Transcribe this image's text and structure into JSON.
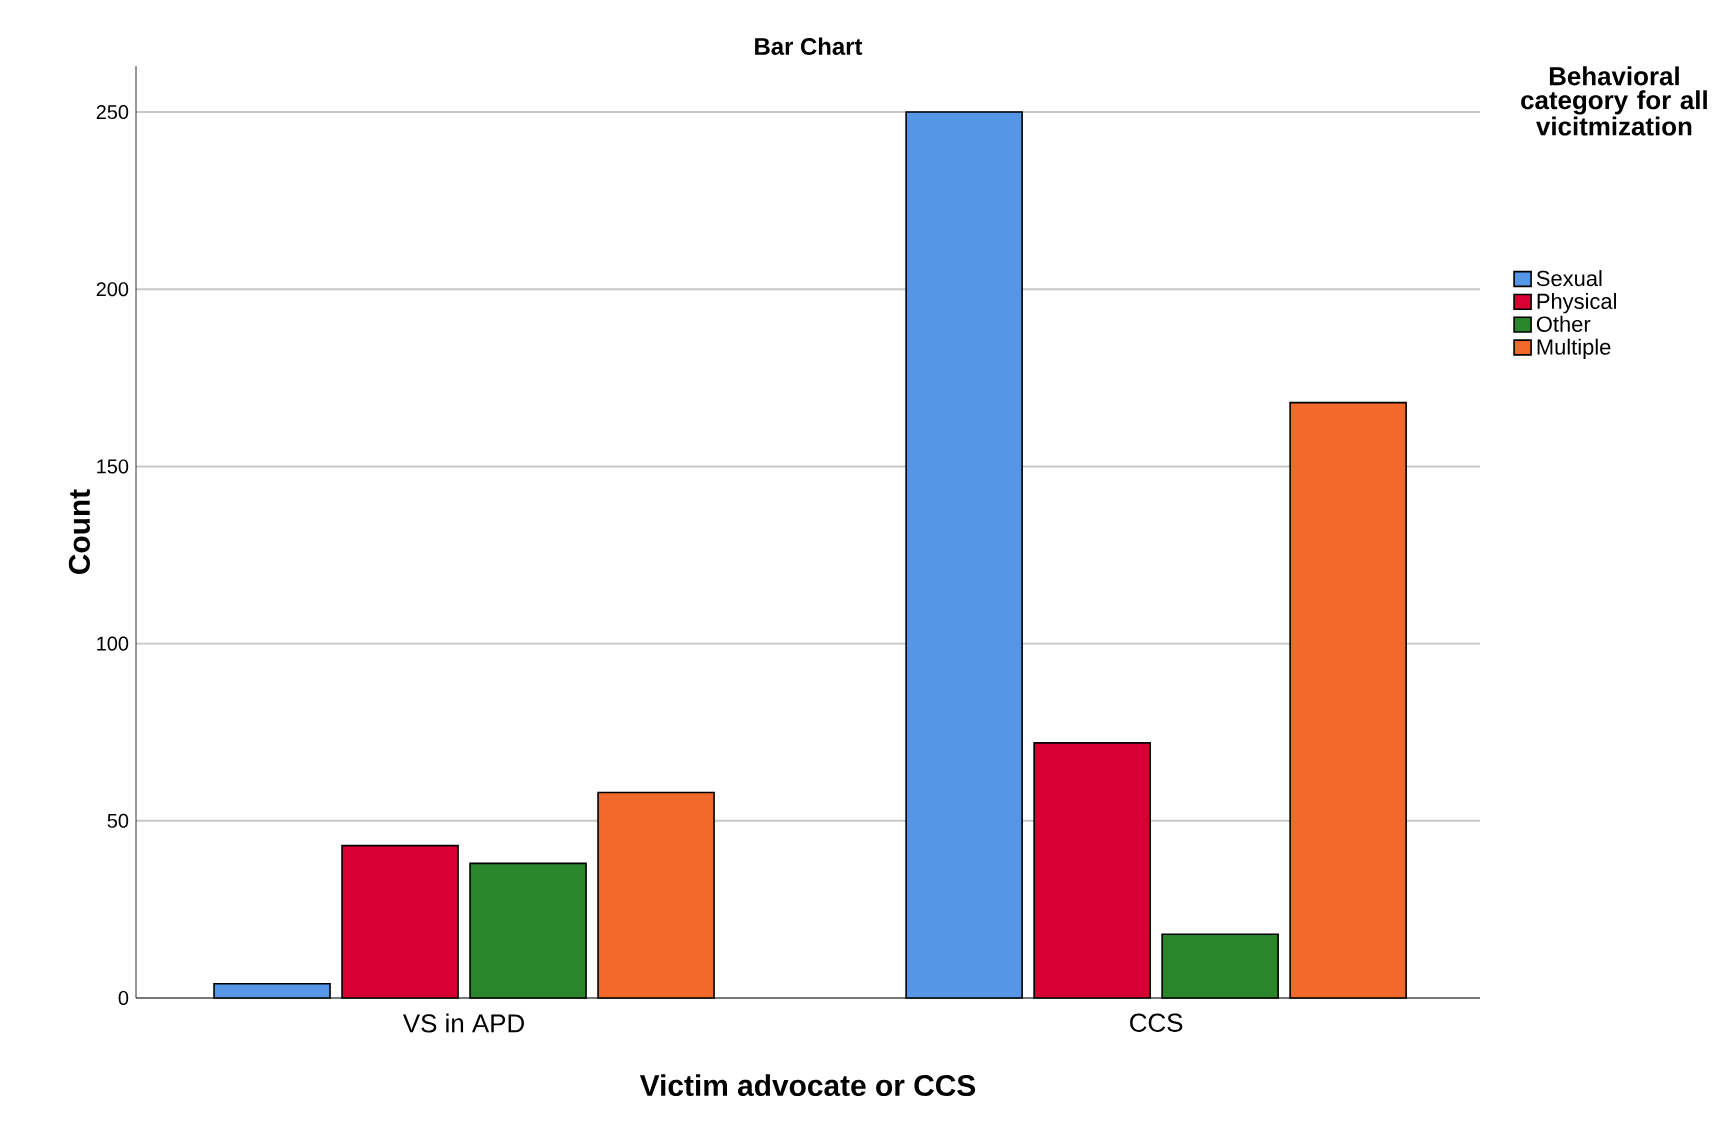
{
  "chart_data": {
    "type": "bar",
    "title": "Bar Chart",
    "xlabel": "Victim advocate or CCS",
    "ylabel": "Count",
    "legend_title": "Behavioral category for all vicitmization",
    "categories": [
      "VS in APD",
      "CCS"
    ],
    "series": [
      {
        "name": "Sexual",
        "color": "#5596e6",
        "values": [
          4,
          250
        ]
      },
      {
        "name": "Physical",
        "color": "#d60032",
        "values": [
          43,
          72
        ]
      },
      {
        "name": "Other",
        "color": "#2a862a",
        "values": [
          38,
          18
        ]
      },
      {
        "name": "Multiple",
        "color": "#f26a2b",
        "values": [
          58,
          168
        ]
      }
    ],
    "ylim": [
      0,
      263
    ],
    "yticks": [
      0,
      50,
      100,
      150,
      200,
      250
    ],
    "grid": "y",
    "legend": "top right"
  }
}
